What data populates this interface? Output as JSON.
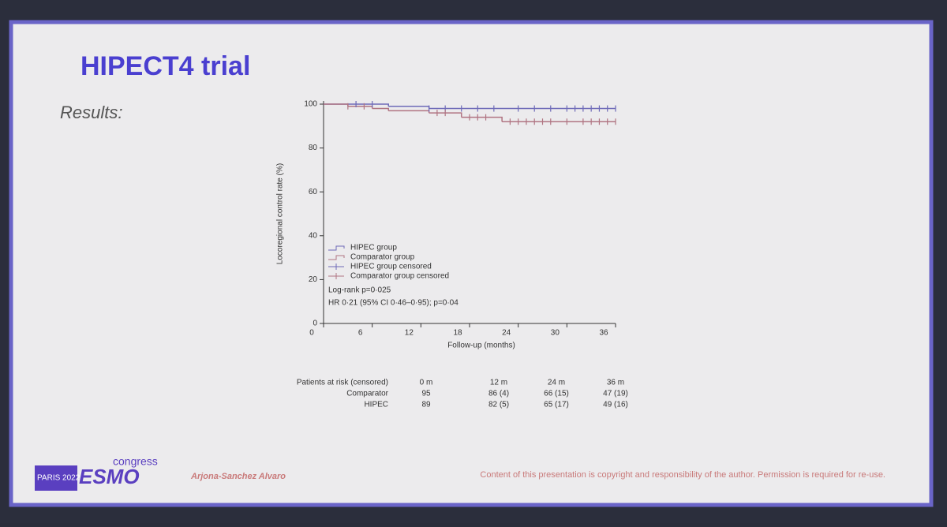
{
  "slide": {
    "title": "HIPECT4 trial",
    "subtitle": "Results:",
    "author": "Arjona-Sanchez Alvaro",
    "copyright": "Content of this presentation is copyright and responsibility of the author. Permission is required for re-use.",
    "logo": {
      "city_year": "PARIS 2022",
      "brand": "ESMO",
      "word": "congress"
    }
  },
  "chart_data": {
    "type": "line",
    "step": true,
    "xlabel": "Follow-up (months)",
    "ylabel": "Locoregional control rate (%)",
    "xlim": [
      0,
      36
    ],
    "ylim": [
      0,
      100
    ],
    "xticks": [
      0,
      6,
      12,
      18,
      24,
      30,
      36
    ],
    "yticks": [
      0,
      20,
      40,
      60,
      80,
      100
    ],
    "legend": "lower left",
    "annotations": [
      "Log-rank p=0·025",
      "HR 0·21 (95% CI 0·46–0·95); p=0·04"
    ],
    "series": [
      {
        "name": "HIPEC group",
        "color": "#6e6ab8",
        "style": "step",
        "x": [
          0,
          8,
          13,
          36
        ],
        "values": [
          100,
          99,
          98,
          98
        ]
      },
      {
        "name": "Comparator group",
        "color": "#b07482",
        "style": "step",
        "x": [
          0,
          3,
          6,
          8,
          13,
          17,
          22,
          36
        ],
        "values": [
          100,
          99,
          98,
          97,
          96,
          94,
          92,
          92
        ]
      },
      {
        "name": "HIPEC group censored",
        "color": "#6e6ab8",
        "style": "censor",
        "x": [
          4,
          6,
          13,
          15,
          17,
          19,
          21,
          24,
          26,
          28,
          30,
          31,
          32,
          33,
          34,
          35,
          36
        ],
        "values": [
          100,
          100,
          98,
          98,
          98,
          98,
          98,
          98,
          98,
          98,
          98,
          98,
          98,
          98,
          98,
          98,
          98
        ]
      },
      {
        "name": "Comparator group censored",
        "color": "#b07482",
        "style": "censor",
        "x": [
          3,
          5,
          14,
          15,
          18,
          19,
          20,
          23,
          24,
          25,
          26,
          27,
          28,
          30,
          32,
          33,
          34,
          35,
          36
        ],
        "values": [
          99,
          99,
          96,
          96,
          94,
          94,
          94,
          92,
          92,
          92,
          92,
          92,
          92,
          92,
          92,
          92,
          92,
          92,
          92
        ]
      }
    ]
  },
  "risk_table": {
    "header": [
      "Patients at risk (censored)",
      "0 m",
      "12 m",
      "24 m",
      "36 m"
    ],
    "rows": [
      [
        "Comparator",
        95,
        "86 (4)",
        "66 (15)",
        "47 (19)"
      ],
      [
        "HIPEC",
        89,
        "82 (5)",
        "65 (17)",
        "49 (16)"
      ]
    ]
  }
}
